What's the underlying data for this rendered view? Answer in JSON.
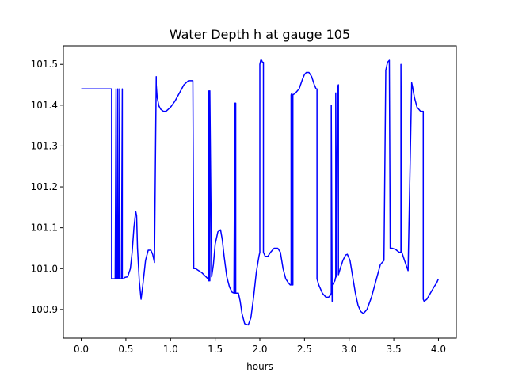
{
  "chart_data": {
    "type": "line",
    "title": "Water Depth h at gauge 105",
    "xlabel": "hours",
    "ylabel": "",
    "xlim": [
      -0.2,
      4.2
    ],
    "ylim": [
      100.83,
      101.545
    ],
    "xticks": [
      0.0,
      0.5,
      1.0,
      1.5,
      2.0,
      2.5,
      3.0,
      3.5,
      4.0
    ],
    "xtick_labels": [
      "0.0",
      "0.5",
      "1.0",
      "1.5",
      "2.0",
      "2.5",
      "3.0",
      "3.5",
      "4.0"
    ],
    "yticks": [
      100.9,
      101.0,
      101.1,
      101.2,
      101.3,
      101.4,
      101.5
    ],
    "ytick_labels": [
      "100.9",
      "101.0",
      "101.1",
      "101.2",
      "101.3",
      "101.4",
      "101.5"
    ],
    "grid": false,
    "legend": "none",
    "series": [
      {
        "color": "#0000ff",
        "x": [
          0.0,
          0.34,
          0.34,
          0.37,
          0.38,
          0.39,
          0.39,
          0.4,
          0.41,
          0.41,
          0.42,
          0.43,
          0.43,
          0.45,
          0.46,
          0.46,
          0.47,
          0.48,
          0.48,
          0.52,
          0.55,
          0.57,
          0.59,
          0.61,
          0.62,
          0.63,
          0.65,
          0.67,
          0.69,
          0.72,
          0.75,
          0.78,
          0.8,
          0.82,
          0.84,
          0.84,
          0.85,
          0.87,
          0.89,
          0.92,
          0.95,
          1.0,
          1.05,
          1.1,
          1.15,
          1.2,
          1.25,
          1.26,
          1.26,
          1.28,
          1.35,
          1.42,
          1.43,
          1.43,
          1.44,
          1.44,
          1.46,
          1.48,
          1.5,
          1.53,
          1.56,
          1.58,
          1.6,
          1.63,
          1.66,
          1.69,
          1.71,
          1.72,
          1.72,
          1.73,
          1.73,
          1.76,
          1.78,
          1.8,
          1.83,
          1.87,
          1.9,
          1.93,
          1.96,
          1.99,
          2.0,
          2.0,
          2.01,
          2.02,
          2.03,
          2.04,
          2.04,
          2.06,
          2.09,
          2.12,
          2.16,
          2.2,
          2.23,
          2.26,
          2.29,
          2.32,
          2.34,
          2.35,
          2.35,
          2.36,
          2.36,
          2.37,
          2.37,
          2.4,
          2.44,
          2.48,
          2.5,
          2.52,
          2.55,
          2.58,
          2.61,
          2.63,
          2.64,
          2.64,
          2.66,
          2.7,
          2.74,
          2.77,
          2.79,
          2.8,
          2.8,
          2.81,
          2.81,
          2.84,
          2.85,
          2.85,
          2.86,
          2.87,
          2.87,
          2.88,
          2.88,
          2.9,
          2.93,
          2.96,
          2.98,
          3.01,
          3.04,
          3.07,
          3.1,
          3.13,
          3.16,
          3.2,
          3.25,
          3.3,
          3.35,
          3.39,
          3.41,
          3.41,
          3.43,
          3.45,
          3.46,
          3.46,
          3.48,
          3.52,
          3.56,
          3.58,
          3.58,
          3.59,
          3.59,
          3.62,
          3.66,
          3.7,
          3.7,
          3.71,
          3.73,
          3.76,
          3.8,
          3.83,
          3.83,
          3.84,
          3.87,
          3.91,
          3.95,
          3.98,
          4.0
        ],
        "y": [
          101.44,
          101.44,
          100.975,
          100.975,
          100.975,
          101.44,
          100.975,
          100.975,
          101.44,
          100.975,
          100.975,
          101.44,
          100.975,
          100.975,
          101.44,
          100.975,
          100.975,
          100.975,
          100.978,
          100.98,
          101.0,
          101.04,
          101.1,
          101.14,
          101.13,
          101.05,
          100.97,
          100.925,
          100.96,
          101.02,
          101.045,
          101.045,
          101.035,
          101.015,
          101.47,
          101.45,
          101.42,
          101.398,
          101.39,
          101.385,
          101.385,
          101.395,
          101.41,
          101.43,
          101.45,
          101.46,
          101.46,
          101.0,
          101.0,
          101.0,
          100.99,
          100.975,
          100.97,
          101.435,
          100.97,
          101.435,
          100.98,
          101.01,
          101.06,
          101.09,
          101.095,
          101.07,
          101.03,
          100.98,
          100.955,
          100.942,
          100.94,
          101.405,
          100.94,
          101.405,
          100.94,
          100.94,
          100.92,
          100.89,
          100.865,
          100.862,
          100.88,
          100.93,
          100.99,
          101.03,
          101.04,
          101.5,
          101.51,
          101.51,
          101.505,
          101.505,
          101.04,
          101.03,
          101.03,
          101.04,
          101.05,
          101.05,
          101.04,
          101.0,
          100.975,
          100.965,
          100.96,
          100.96,
          101.425,
          101.43,
          100.96,
          100.96,
          101.425,
          101.43,
          101.44,
          101.465,
          101.475,
          101.48,
          101.48,
          101.47,
          101.45,
          101.44,
          101.44,
          100.975,
          100.96,
          100.94,
          100.93,
          100.93,
          100.935,
          100.94,
          101.4,
          100.92,
          100.96,
          100.97,
          100.98,
          101.43,
          100.98,
          101.44,
          101.445,
          101.45,
          100.985,
          101.0,
          101.02,
          101.033,
          101.035,
          101.02,
          100.98,
          100.94,
          100.91,
          100.895,
          100.89,
          100.9,
          100.93,
          100.97,
          101.01,
          101.02,
          101.48,
          101.485,
          101.505,
          101.51,
          101.05,
          101.05,
          101.05,
          101.047,
          101.04,
          101.04,
          101.5,
          101.04,
          101.04,
          101.02,
          100.995,
          101.45,
          101.455,
          101.445,
          101.42,
          101.395,
          101.385,
          101.385,
          100.925,
          100.92,
          100.925,
          100.94,
          100.955,
          100.965,
          100.975
        ]
      }
    ]
  }
}
